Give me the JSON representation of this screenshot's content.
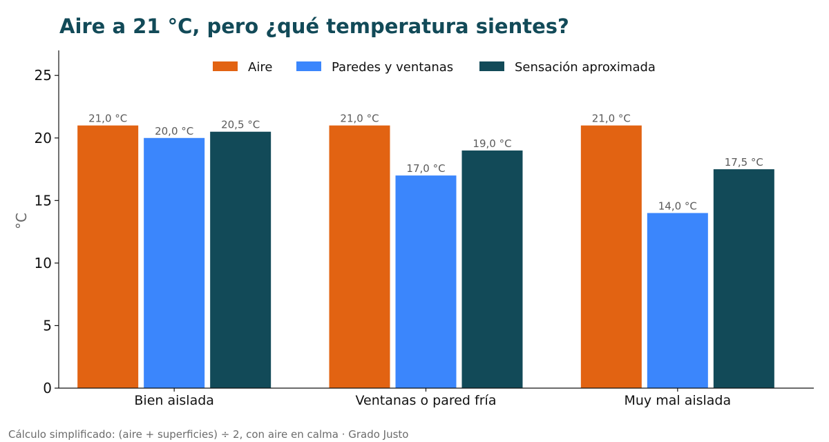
{
  "chart_data": {
    "type": "bar",
    "title": "Aire a 21 °C, pero ¿qué temperatura sientes?",
    "ylabel": "°C",
    "xlabel": "",
    "ylim": [
      0,
      27
    ],
    "yticks": [
      0,
      5,
      10,
      15,
      20,
      25
    ],
    "categories": [
      "Bien aislada",
      "Ventanas o pared fría",
      "Muy mal aislada"
    ],
    "series": [
      {
        "name": "Aire",
        "color": "#e26312",
        "values": [
          21.0,
          21.0,
          21.0
        ],
        "labels": [
          "21,0 °C",
          "21,0 °C",
          "21,0 °C"
        ]
      },
      {
        "name": "Paredes y ventanas",
        "color": "#3b86fc",
        "values": [
          20.0,
          17.0,
          14.0
        ],
        "labels": [
          "20,0 °C",
          "17,0 °C",
          "14,0 °C"
        ]
      },
      {
        "name": "Sensación aproximada",
        "color": "#124a58",
        "values": [
          20.5,
          19.0,
          17.5
        ],
        "labels": [
          "20,5 °C",
          "19,0 °C",
          "17,5 °C"
        ]
      }
    ],
    "legend_position": "top-center",
    "grid": false
  },
  "footer": "Cálculo simplificado: (aire + superficies) ÷ 2, con aire en calma · Grado Justo"
}
